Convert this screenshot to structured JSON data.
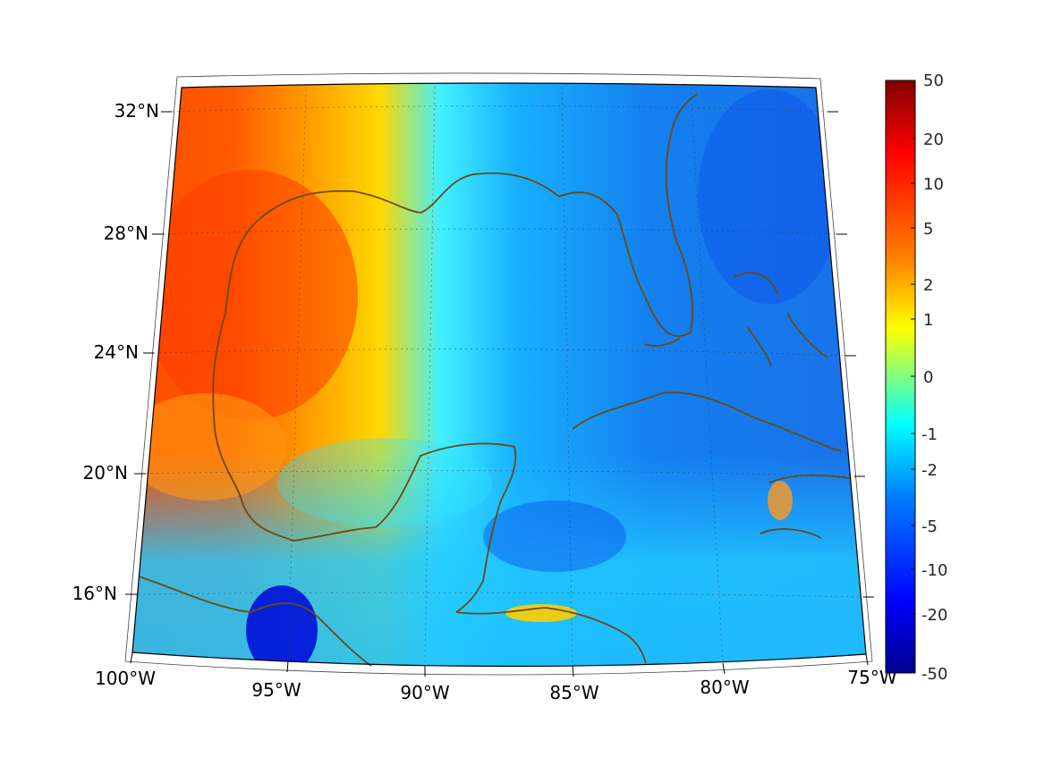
{
  "map": {
    "lat_labels": [
      "32°N",
      "28°N",
      "24°N",
      "20°N",
      "16°N"
    ],
    "lon_labels": [
      "100°W",
      "95°W",
      "90°W",
      "85°W",
      "80°W",
      "75°W"
    ],
    "lat_values": [
      32,
      28,
      24,
      20,
      16
    ],
    "lon_values": [
      -100,
      -95,
      -90,
      -85,
      -80,
      -75
    ],
    "extent": {
      "lon_min": -100,
      "lon_max": -75,
      "lat_min": 14,
      "lat_max": 33
    },
    "coastline_color": "#6b4a10",
    "grid_style": "dotted"
  },
  "colorbar": {
    "labels": [
      "50",
      "20",
      "10",
      "5",
      "2",
      "1",
      "0",
      "-1",
      "-2",
      "-5",
      "-10",
      "-20",
      "-50"
    ],
    "colormap": "jet",
    "scale": "symmetric-log"
  },
  "colors": {
    "jet": [
      "#00008f",
      "#0000ff",
      "#0080ff",
      "#00ffff",
      "#80ff80",
      "#ffff00",
      "#ff8000",
      "#ff0000",
      "#800000"
    ]
  }
}
